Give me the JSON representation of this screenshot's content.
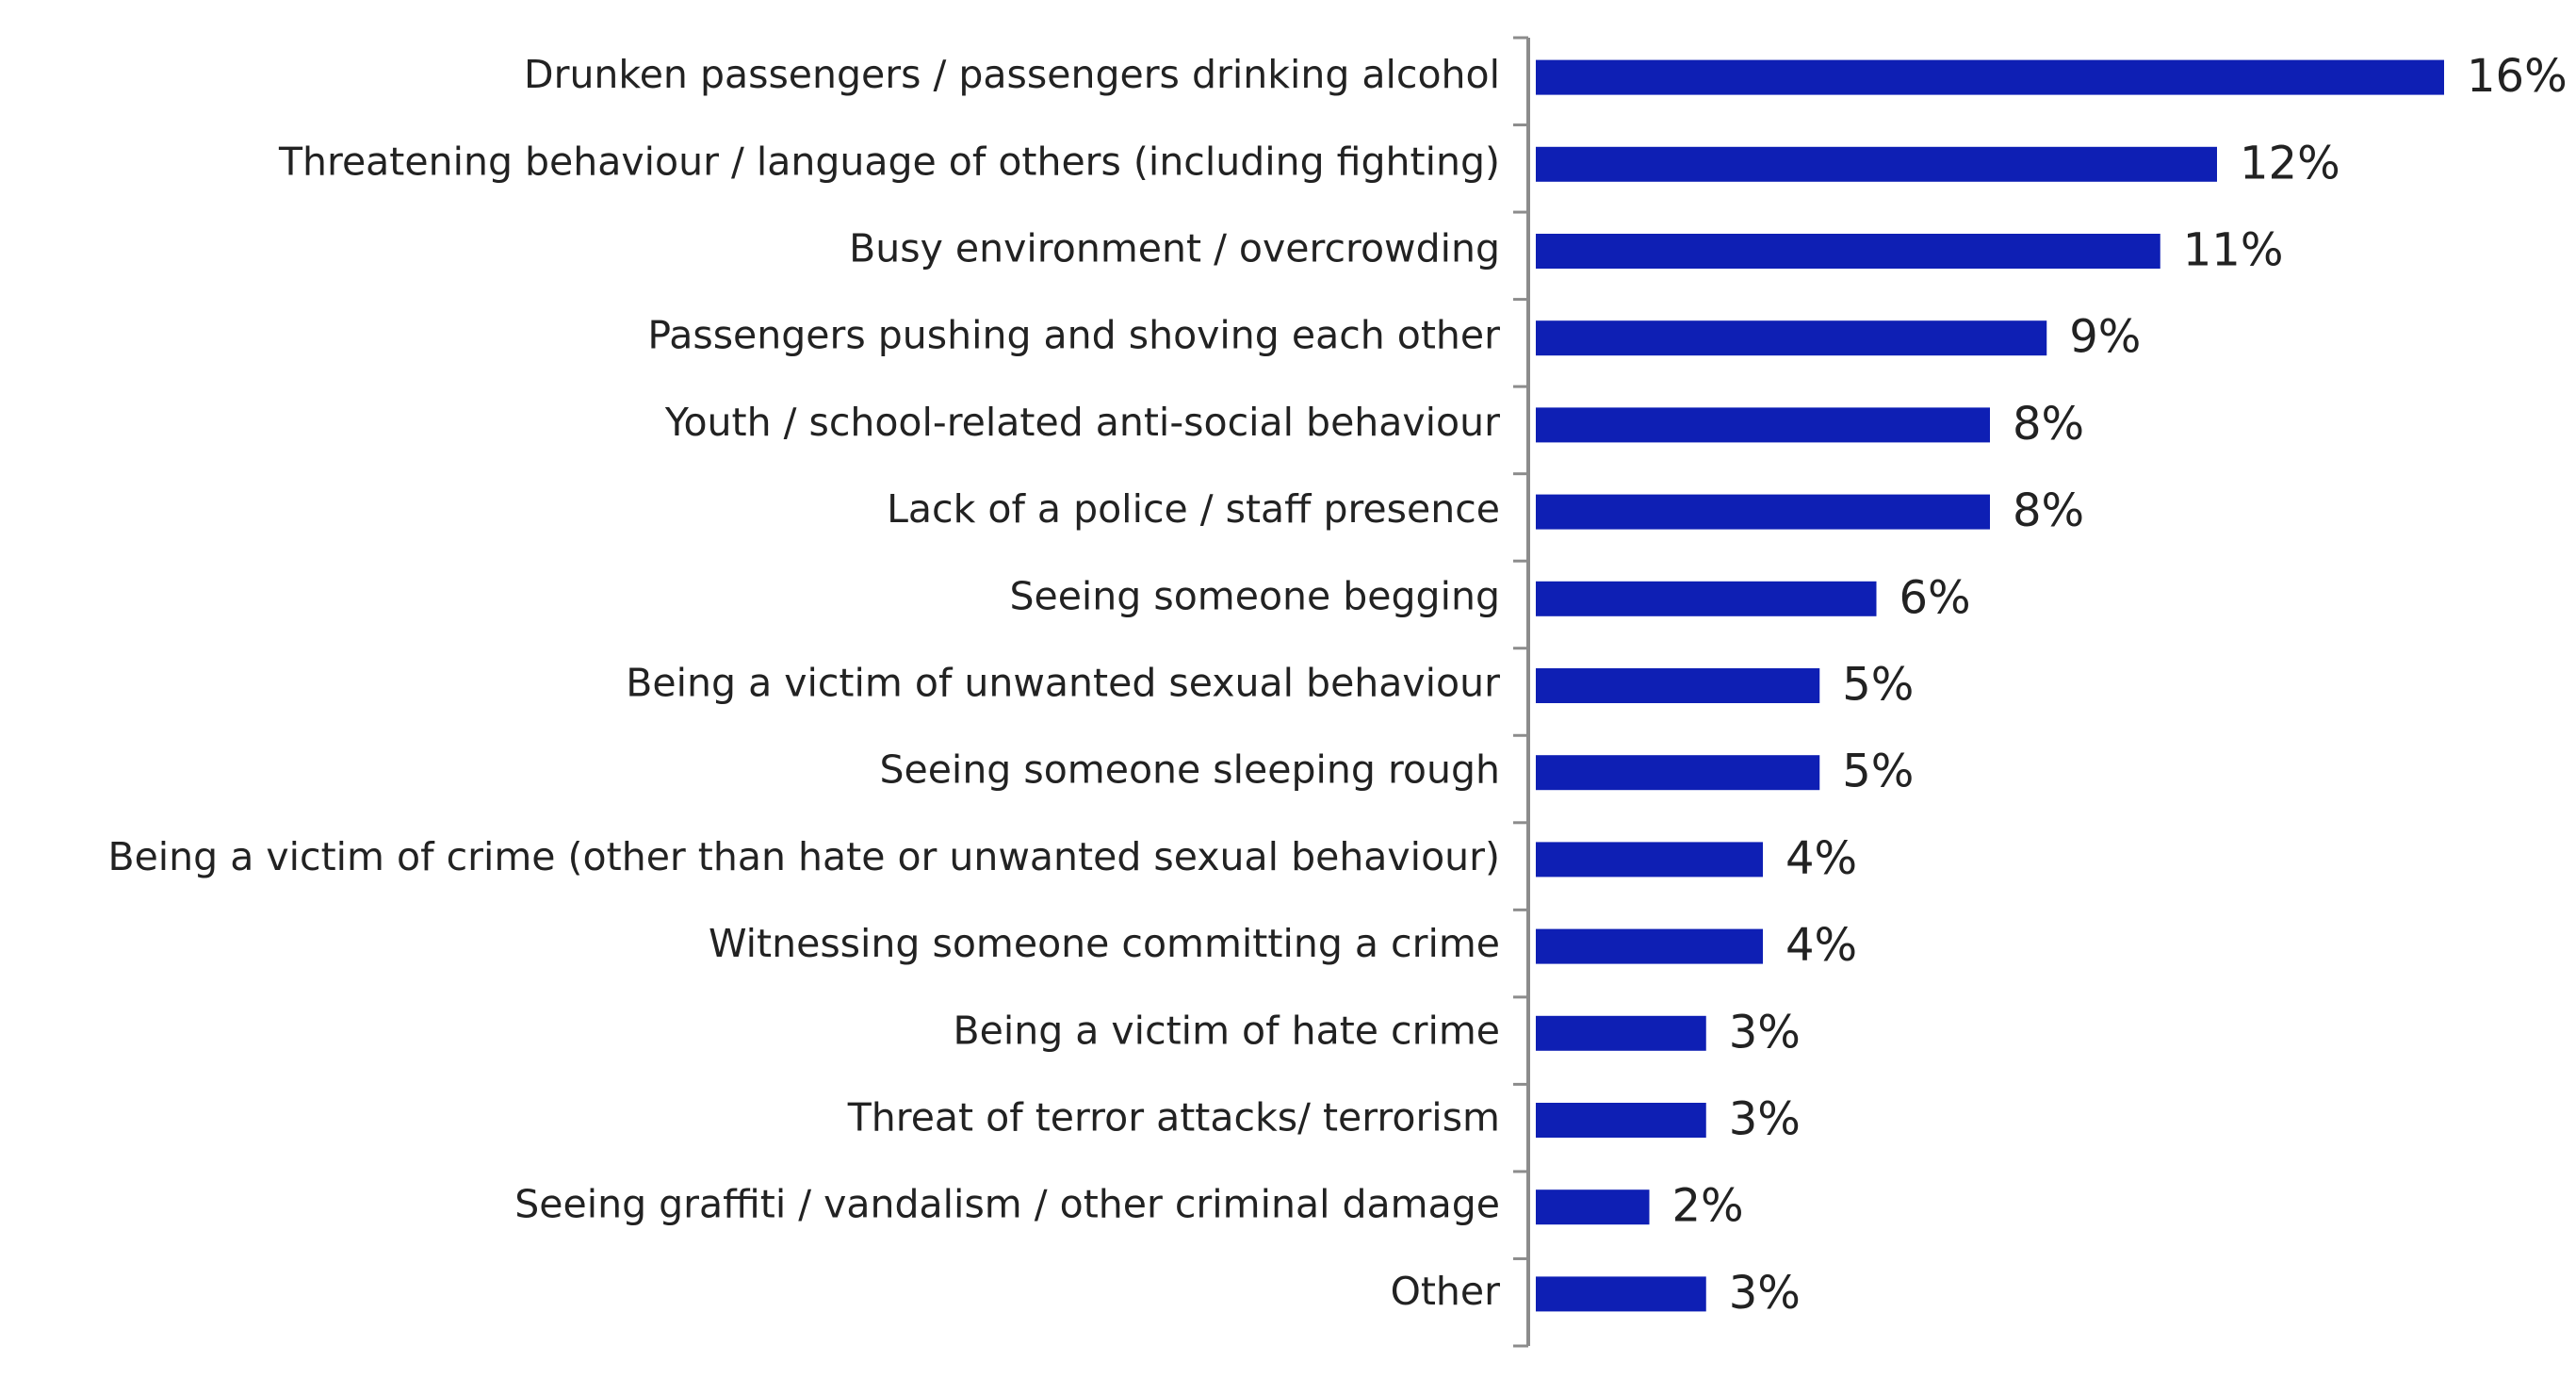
{
  "chart_data": {
    "type": "bar",
    "orientation": "horizontal",
    "title": "",
    "xlabel": "",
    "ylabel": "",
    "xlim": [
      0,
      16
    ],
    "grid": false,
    "legend": "none",
    "value_suffix": "%",
    "bar_color": "#0e1fb4",
    "axis_color": "#8c8c8c",
    "categories": [
      "Drunken passengers / passengers drinking alcohol",
      "Threatening behaviour / language of others (including fighting)",
      "Busy environment / overcrowding",
      "Passengers pushing and shoving each other",
      "Youth / school-related anti-social behaviour",
      "Lack of a police / staff presence",
      "Seeing someone begging",
      "Being a victim of unwanted sexual behaviour",
      "Seeing someone sleeping rough",
      "Being a victim of crime (other than hate or unwanted sexual behaviour)",
      "Witnessing someone committing a crime",
      "Being a victim of hate crime",
      "Threat of terror attacks/ terrorism",
      "Seeing graffiti / vandalism / other criminal damage",
      "Other"
    ],
    "values": [
      16,
      12,
      11,
      9,
      8,
      8,
      6,
      5,
      5,
      4,
      4,
      3,
      3,
      2,
      3
    ],
    "value_labels": [
      "16%",
      "12%",
      "11%",
      "9%",
      "8%",
      "8%",
      "6%",
      "5%",
      "5%",
      "4%",
      "4%",
      "3%",
      "3%",
      "2%",
      "3%"
    ]
  }
}
